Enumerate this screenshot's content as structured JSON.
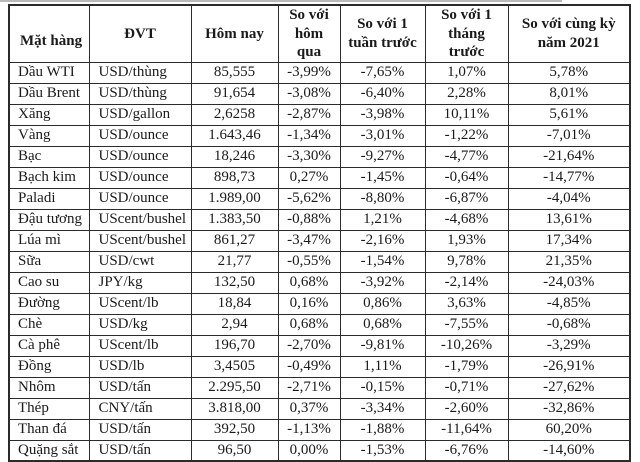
{
  "page": {
    "background_color": "#ffffff",
    "text_color": "#1a1a1a",
    "border_color": "#2b2b2b"
  },
  "table": {
    "columns": [
      {
        "id": "commodity",
        "label": "Mặt hàng"
      },
      {
        "id": "unit",
        "label": "ĐVT"
      },
      {
        "id": "today",
        "label": "Hôm nay"
      },
      {
        "id": "vs_yesterday",
        "label": "So với hôm qua"
      },
      {
        "id": "vs_last_week",
        "label": "So với 1 tuần trước"
      },
      {
        "id": "vs_last_month",
        "label": "So với 1 tháng trước"
      },
      {
        "id": "vs_same_period_2021",
        "label": "So với cùng kỳ năm 2021"
      }
    ],
    "rows": [
      {
        "commodity": "Dầu WTI",
        "unit": "USD/thùng",
        "today": "85,555",
        "vs_yesterday": "-3,99%",
        "vs_last_week": "-7,65%",
        "vs_last_month": "1,07%",
        "vs_same_period_2021": "5,78%"
      },
      {
        "commodity": "Dầu Brent",
        "unit": "USD/thùng",
        "today": "91,654",
        "vs_yesterday": "-3,08%",
        "vs_last_week": "-6,40%",
        "vs_last_month": "2,28%",
        "vs_same_period_2021": "8,01%"
      },
      {
        "commodity": "Xăng",
        "unit": "USD/gallon",
        "today": "2,6258",
        "vs_yesterday": "-2,87%",
        "vs_last_week": "-3,98%",
        "vs_last_month": "10,11%",
        "vs_same_period_2021": "5,61%"
      },
      {
        "commodity": "Vàng",
        "unit": "USD/ounce",
        "today": "1.643,46",
        "vs_yesterday": "-1,34%",
        "vs_last_week": "-3,01%",
        "vs_last_month": "-1,22%",
        "vs_same_period_2021": "-7,01%"
      },
      {
        "commodity": "Bạc",
        "unit": "USD/ounce",
        "today": "18,246",
        "vs_yesterday": "-3,30%",
        "vs_last_week": "-9,27%",
        "vs_last_month": "-4,77%",
        "vs_same_period_2021": "-21,64%"
      },
      {
        "commodity": "Bạch kim",
        "unit": "USD/ounce",
        "today": "898,73",
        "vs_yesterday": "0,27%",
        "vs_last_week": "-1,45%",
        "vs_last_month": "-0,64%",
        "vs_same_period_2021": "-14,77%"
      },
      {
        "commodity": "Paladi",
        "unit": "USD/ounce",
        "today": "1.989,00",
        "vs_yesterday": "-5,62%",
        "vs_last_week": "-8,80%",
        "vs_last_month": "-6,87%",
        "vs_same_period_2021": "-4,04%"
      },
      {
        "commodity": "Đậu tương",
        "unit": "UScent/bushel",
        "today": "1.383,50",
        "vs_yesterday": "-0,88%",
        "vs_last_week": "1,21%",
        "vs_last_month": "-4,68%",
        "vs_same_period_2021": "13,61%"
      },
      {
        "commodity": "Lúa mì",
        "unit": "UScent/bushel",
        "today": "861,27",
        "vs_yesterday": "-3,47%",
        "vs_last_week": "-2,16%",
        "vs_last_month": "1,93%",
        "vs_same_period_2021": "17,34%"
      },
      {
        "commodity": "Sữa",
        "unit": "USD/cwt",
        "today": "21,77",
        "vs_yesterday": "-0,55%",
        "vs_last_week": "-1,54%",
        "vs_last_month": "9,78%",
        "vs_same_period_2021": "21,35%"
      },
      {
        "commodity": "Cao su",
        "unit": "JPY/kg",
        "today": "132,50",
        "vs_yesterday": "0,68%",
        "vs_last_week": "-3,92%",
        "vs_last_month": "-2,14%",
        "vs_same_period_2021": "-24,03%"
      },
      {
        "commodity": "Đường",
        "unit": "UScent/lb",
        "today": "18,84",
        "vs_yesterday": "0,16%",
        "vs_last_week": "0,86%",
        "vs_last_month": "3,63%",
        "vs_same_period_2021": "-4,85%"
      },
      {
        "commodity": "Chè",
        "unit": "USD/kg",
        "today": "2,94",
        "vs_yesterday": "0,68%",
        "vs_last_week": "0,68%",
        "vs_last_month": "-7,55%",
        "vs_same_period_2021": "-0,68%"
      },
      {
        "commodity": "Cà phê",
        "unit": "UScent/lb",
        "today": "196,70",
        "vs_yesterday": "-2,70%",
        "vs_last_week": "-9,81%",
        "vs_last_month": "-10,26%",
        "vs_same_period_2021": "-3,29%"
      },
      {
        "commodity": "Đồng",
        "unit": "USD/lb",
        "today": "3,4505",
        "vs_yesterday": "-0,49%",
        "vs_last_week": "1,11%",
        "vs_last_month": "-1,79%",
        "vs_same_period_2021": "-26,91%"
      },
      {
        "commodity": "Nhôm",
        "unit": "USD/tấn",
        "today": "2.295,50",
        "vs_yesterday": "-2,71%",
        "vs_last_week": "-0,15%",
        "vs_last_month": "-0,71%",
        "vs_same_period_2021": "-27,62%"
      },
      {
        "commodity": "Thép",
        "unit": "CNY/tấn",
        "today": "3.818,00",
        "vs_yesterday": "0,37%",
        "vs_last_week": "-3,34%",
        "vs_last_month": "-2,60%",
        "vs_same_period_2021": "-32,86%"
      },
      {
        "commodity": "Than đá",
        "unit": "USD/tấn",
        "today": "392,50",
        "vs_yesterday": "-1,13%",
        "vs_last_week": "-1,88%",
        "vs_last_month": "-11,64%",
        "vs_same_period_2021": "60,20%"
      },
      {
        "commodity": "Quặng sắt",
        "unit": "USD/tấn",
        "today": "96,50",
        "vs_yesterday": "0,00%",
        "vs_last_week": "-1,53%",
        "vs_last_month": "-6,76%",
        "vs_same_period_2021": "-14,60%"
      }
    ]
  }
}
